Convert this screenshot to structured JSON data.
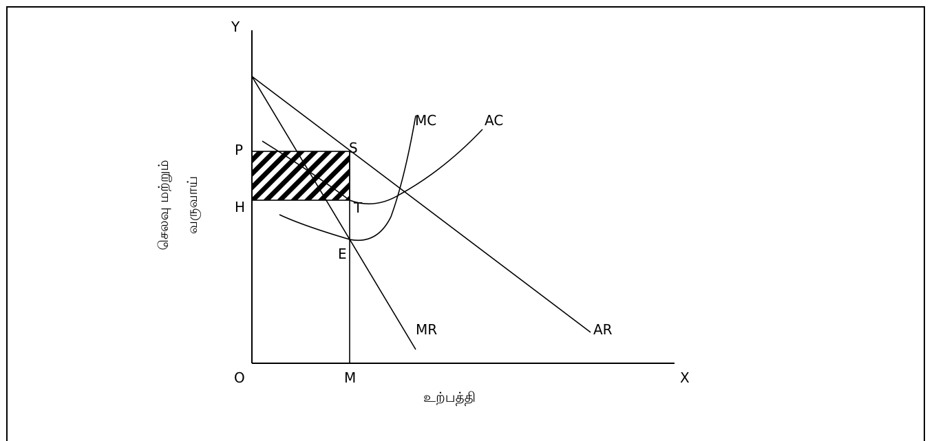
{
  "diagram": {
    "axes": {
      "y_label": "Y",
      "x_label": "X",
      "origin_label": "O"
    },
    "point_labels": {
      "P": "P",
      "H": "H",
      "S": "S",
      "T": "T",
      "E": "E",
      "M": "M"
    },
    "curve_labels": {
      "MC": "MC",
      "AC": "AC",
      "MR": "MR",
      "AR": "AR"
    },
    "y_axis_title_line1": "செலவு மற்றும்",
    "y_axis_title_line2": "வருவாய்",
    "x_axis_title": "உற்பத்தி",
    "colors": {
      "ink": "#000000",
      "background": "#ffffff"
    },
    "profit_region": {
      "fill_style": "diagonal-hatch"
    }
  }
}
